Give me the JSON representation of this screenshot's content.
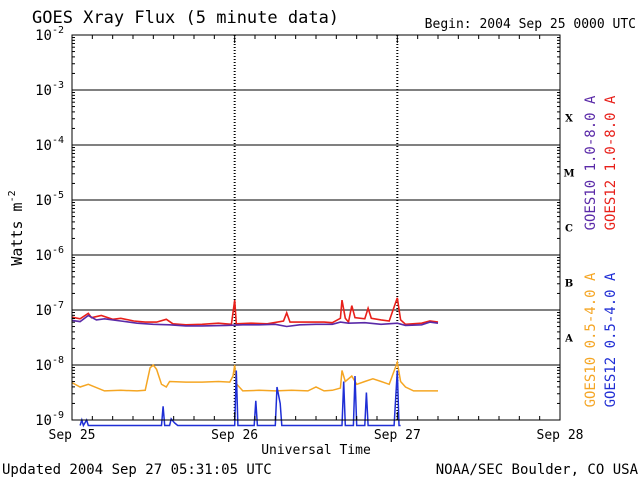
{
  "chart_data": {
    "type": "line",
    "title": "GOES Xray Flux (5 minute data)",
    "begin_label": "Begin:  2004 Sep 25 0000 UTC",
    "xlabel": "Universal Time",
    "ylabel": "Watts m",
    "ylabel_sup": "-2",
    "y_scale": "log",
    "ylim": [
      1e-09,
      0.01
    ],
    "xlim_days": [
      0,
      3
    ],
    "x_ticks": [
      {
        "day": 0,
        "label": "Sep 25"
      },
      {
        "day": 1,
        "label": "Sep 26"
      },
      {
        "day": 2,
        "label": "Sep 27"
      },
      {
        "day": 3,
        "label": "Sep 28"
      }
    ],
    "y_ticks": [
      {
        "exp": -2,
        "base": "10",
        "sup": "-2"
      },
      {
        "exp": -3,
        "base": "10",
        "sup": "-3"
      },
      {
        "exp": -4,
        "base": "10",
        "sup": "-4"
      },
      {
        "exp": -5,
        "base": "10",
        "sup": "-5"
      },
      {
        "exp": -6,
        "base": "10",
        "sup": "-6"
      },
      {
        "exp": -7,
        "base": "10",
        "sup": "-7"
      },
      {
        "exp": -8,
        "base": "10",
        "sup": "-8"
      },
      {
        "exp": -9,
        "base": "10",
        "sup": "-9"
      }
    ],
    "flare_classes": [
      {
        "label": "X",
        "exp": -3.5
      },
      {
        "label": "M",
        "exp": -4.5
      },
      {
        "label": "C",
        "exp": -5.5
      },
      {
        "label": "B",
        "exp": -6.5
      },
      {
        "label": "A",
        "exp": -7.5
      }
    ],
    "legend": [
      {
        "name": "GOES10 1.0-8.0 A",
        "color": "#5a2aa8"
      },
      {
        "name": "GOES12 1.0-8.0 A",
        "color": "#e8201a"
      },
      {
        "name": "GOES10 0.5-4.0 A",
        "color": "#f5a623"
      },
      {
        "name": "GOES12 0.5-4.0 A",
        "color": "#1f2fd6"
      }
    ],
    "series": [
      {
        "name": "GOES12 1.0-8.0 A",
        "color": "#e8201a",
        "points": [
          [
            0.0,
            -7.13
          ],
          [
            0.05,
            -7.16
          ],
          [
            0.1,
            -7.06
          ],
          [
            0.12,
            -7.14
          ],
          [
            0.18,
            -7.1
          ],
          [
            0.25,
            -7.17
          ],
          [
            0.3,
            -7.15
          ],
          [
            0.38,
            -7.2
          ],
          [
            0.45,
            -7.22
          ],
          [
            0.52,
            -7.22
          ],
          [
            0.58,
            -7.17
          ],
          [
            0.62,
            -7.25
          ],
          [
            0.7,
            -7.27
          ],
          [
            0.8,
            -7.26
          ],
          [
            0.9,
            -7.24
          ],
          [
            0.98,
            -7.26
          ],
          [
            1.0,
            -6.82
          ],
          [
            1.01,
            -7.25
          ],
          [
            1.1,
            -7.24
          ],
          [
            1.2,
            -7.25
          ],
          [
            1.3,
            -7.2
          ],
          [
            1.32,
            -7.05
          ],
          [
            1.34,
            -7.22
          ],
          [
            1.45,
            -7.22
          ],
          [
            1.55,
            -7.22
          ],
          [
            1.6,
            -7.23
          ],
          [
            1.65,
            -7.15
          ],
          [
            1.66,
            -6.82
          ],
          [
            1.68,
            -7.15
          ],
          [
            1.7,
            -7.22
          ],
          [
            1.72,
            -6.92
          ],
          [
            1.74,
            -7.14
          ],
          [
            1.8,
            -7.16
          ],
          [
            1.82,
            -6.97
          ],
          [
            1.84,
            -7.15
          ],
          [
            1.9,
            -7.18
          ],
          [
            1.95,
            -7.2
          ],
          [
            2.0,
            -6.78
          ],
          [
            2.02,
            -7.18
          ],
          [
            2.05,
            -7.26
          ],
          [
            2.15,
            -7.24
          ],
          [
            2.2,
            -7.2
          ],
          [
            2.25,
            -7.22
          ]
        ]
      },
      {
        "name": "GOES10 1.0-8.0 A",
        "color": "#5a2aa8",
        "points": [
          [
            0.0,
            -7.19
          ],
          [
            0.05,
            -7.21
          ],
          [
            0.1,
            -7.1
          ],
          [
            0.15,
            -7.18
          ],
          [
            0.2,
            -7.16
          ],
          [
            0.3,
            -7.2
          ],
          [
            0.4,
            -7.24
          ],
          [
            0.5,
            -7.26
          ],
          [
            0.6,
            -7.27
          ],
          [
            0.7,
            -7.29
          ],
          [
            0.8,
            -7.29
          ],
          [
            0.95,
            -7.28
          ],
          [
            1.05,
            -7.27
          ],
          [
            1.15,
            -7.27
          ],
          [
            1.25,
            -7.26
          ],
          [
            1.32,
            -7.3
          ],
          [
            1.4,
            -7.27
          ],
          [
            1.5,
            -7.26
          ],
          [
            1.6,
            -7.26
          ],
          [
            1.65,
            -7.22
          ],
          [
            1.7,
            -7.24
          ],
          [
            1.8,
            -7.23
          ],
          [
            1.9,
            -7.26
          ],
          [
            2.0,
            -7.24
          ],
          [
            2.05,
            -7.28
          ],
          [
            2.15,
            -7.27
          ],
          [
            2.2,
            -7.22
          ],
          [
            2.25,
            -7.24
          ]
        ]
      },
      {
        "name": "GOES10 0.5-4.0 A",
        "color": "#f5a623",
        "points": [
          [
            0.0,
            -8.32
          ],
          [
            0.05,
            -8.4
          ],
          [
            0.1,
            -8.35
          ],
          [
            0.2,
            -8.47
          ],
          [
            0.3,
            -8.46
          ],
          [
            0.4,
            -8.47
          ],
          [
            0.45,
            -8.46
          ],
          [
            0.48,
            -8.05
          ],
          [
            0.5,
            -8.0
          ],
          [
            0.52,
            -8.08
          ],
          [
            0.55,
            -8.35
          ],
          [
            0.58,
            -8.4
          ],
          [
            0.6,
            -8.3
          ],
          [
            0.7,
            -8.31
          ],
          [
            0.8,
            -8.31
          ],
          [
            0.9,
            -8.3
          ],
          [
            0.97,
            -8.31
          ],
          [
            0.99,
            -8.2
          ],
          [
            1.0,
            -8.0
          ],
          [
            1.01,
            -8.34
          ],
          [
            1.05,
            -8.47
          ],
          [
            1.15,
            -8.46
          ],
          [
            1.25,
            -8.47
          ],
          [
            1.35,
            -8.46
          ],
          [
            1.45,
            -8.47
          ],
          [
            1.5,
            -8.4
          ],
          [
            1.55,
            -8.47
          ],
          [
            1.6,
            -8.46
          ],
          [
            1.65,
            -8.42
          ],
          [
            1.66,
            -8.1
          ],
          [
            1.68,
            -8.3
          ],
          [
            1.72,
            -8.2
          ],
          [
            1.75,
            -8.35
          ],
          [
            1.8,
            -8.3
          ],
          [
            1.85,
            -8.25
          ],
          [
            1.9,
            -8.3
          ],
          [
            1.95,
            -8.35
          ],
          [
            2.0,
            -7.95
          ],
          [
            2.02,
            -8.3
          ],
          [
            2.05,
            -8.4
          ],
          [
            2.1,
            -8.47
          ],
          [
            2.2,
            -8.47
          ],
          [
            2.25,
            -8.47
          ]
        ]
      },
      {
        "name": "GOES12 0.5-4.0 A",
        "color": "#1f2fd6",
        "points": [
          [
            0.05,
            -9.1
          ],
          [
            0.06,
            -9.0
          ],
          [
            0.07,
            -9.1
          ],
          [
            0.09,
            -9.0
          ],
          [
            0.1,
            -9.1
          ],
          [
            0.55,
            -9.1
          ],
          [
            0.56,
            -8.75
          ],
          [
            0.57,
            -9.1
          ],
          [
            0.6,
            -9.1
          ],
          [
            0.61,
            -8.98
          ],
          [
            0.63,
            -9.05
          ],
          [
            0.65,
            -9.1
          ],
          [
            1.0,
            -9.1
          ],
          [
            1.01,
            -8.1
          ],
          [
            1.02,
            -9.1
          ],
          [
            1.12,
            -9.1
          ],
          [
            1.13,
            -8.65
          ],
          [
            1.14,
            -9.1
          ],
          [
            1.25,
            -9.1
          ],
          [
            1.26,
            -8.4
          ],
          [
            1.28,
            -8.7
          ],
          [
            1.29,
            -9.1
          ],
          [
            1.66,
            -9.1
          ],
          [
            1.67,
            -8.3
          ],
          [
            1.68,
            -9.1
          ],
          [
            1.73,
            -9.1
          ],
          [
            1.74,
            -8.2
          ],
          [
            1.75,
            -9.1
          ],
          [
            1.8,
            -9.1
          ],
          [
            1.81,
            -8.5
          ],
          [
            1.82,
            -9.1
          ],
          [
            1.98,
            -9.1
          ],
          [
            2.0,
            -8.1
          ],
          [
            2.01,
            -9.1
          ],
          [
            2.02,
            -9.1
          ]
        ]
      }
    ]
  },
  "footer": {
    "updated": "Updated 2004 Sep 27 05:31:05 UTC",
    "credit": "NOAA/SEC Boulder, CO USA"
  }
}
